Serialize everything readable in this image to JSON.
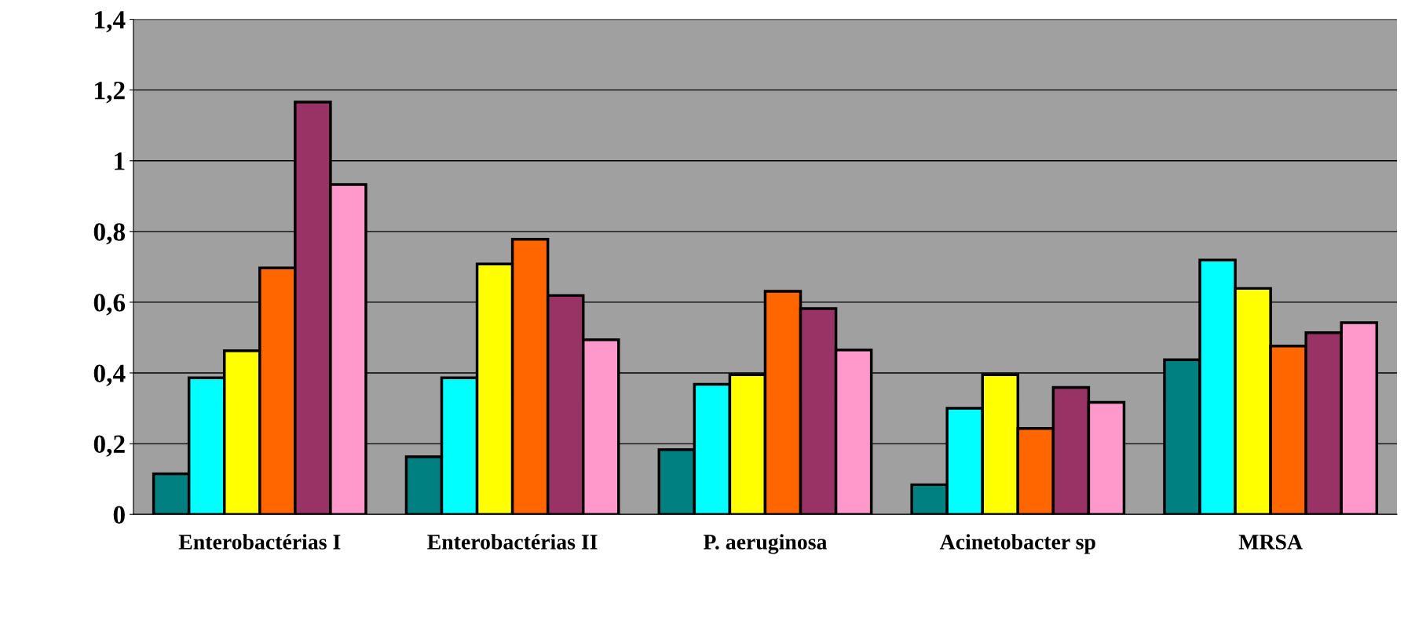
{
  "chart_data": {
    "type": "bar",
    "categories": [
      "Enterobactérias I",
      "Enterobactérias II",
      "P. aeruginosa",
      "Acinetobacter sp",
      "MRSA"
    ],
    "series": [
      {
        "color": "#008080",
        "values": [
          0.115,
          0.163,
          0.183,
          0.084,
          0.437
        ]
      },
      {
        "color": "#00ffff",
        "values": [
          0.386,
          0.386,
          0.368,
          0.3,
          0.719
        ]
      },
      {
        "color": "#ffff00",
        "values": [
          0.463,
          0.708,
          0.395,
          0.395,
          0.639
        ]
      },
      {
        "color": "#ff6600",
        "values": [
          0.697,
          0.778,
          0.631,
          0.243,
          0.476
        ]
      },
      {
        "color": "#993366",
        "values": [
          1.166,
          0.619,
          0.582,
          0.359,
          0.514
        ]
      },
      {
        "color": "#ff99cc",
        "values": [
          0.933,
          0.494,
          0.465,
          0.317,
          0.542
        ]
      }
    ],
    "ylim": [
      0,
      1.4
    ],
    "yticks": [
      {
        "value": 0,
        "label": "0"
      },
      {
        "value": 0.2,
        "label": "0,2"
      },
      {
        "value": 0.4,
        "label": "0,4"
      },
      {
        "value": 0.6,
        "label": "0,6"
      },
      {
        "value": 0.8,
        "label": "0,8"
      },
      {
        "value": 1,
        "label": "1"
      },
      {
        "value": 1.2,
        "label": "1,2"
      },
      {
        "value": 1.4,
        "label": "1,4"
      }
    ],
    "grid": "y",
    "legend": false
  }
}
